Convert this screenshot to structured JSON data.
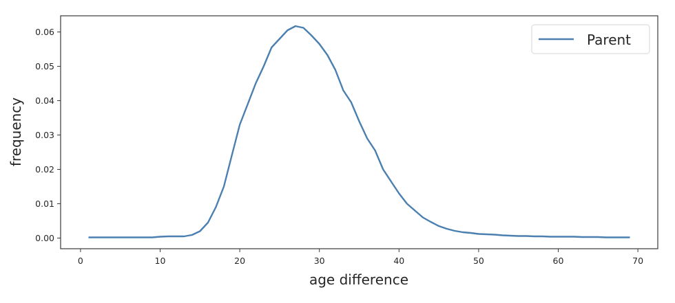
{
  "chart_data": {
    "type": "line",
    "title": "",
    "xlabel": "age difference",
    "ylabel": "frequency",
    "xlim": [
      -2.5,
      72.5
    ],
    "ylim": [
      -0.0031,
      0.0647
    ],
    "xticks": [
      0,
      10,
      20,
      30,
      40,
      50,
      60,
      70
    ],
    "xtick_labels": [
      "0",
      "10",
      "20",
      "30",
      "40",
      "50",
      "60",
      "70"
    ],
    "yticks": [
      0.0,
      0.01,
      0.02,
      0.03,
      0.04,
      0.05,
      0.06
    ],
    "ytick_labels": [
      "0.00",
      "0.01",
      "0.02",
      "0.03",
      "0.04",
      "0.05",
      "0.06"
    ],
    "grid": false,
    "legend": {
      "position": "upper right",
      "entries": [
        "Parent"
      ]
    },
    "series": [
      {
        "name": "Parent",
        "color": "#4a7fb0",
        "x": [
          1,
          2,
          3,
          4,
          5,
          6,
          7,
          8,
          9,
          10,
          11,
          12,
          13,
          14,
          15,
          16,
          17,
          18,
          19,
          20,
          21,
          22,
          23,
          24,
          25,
          26,
          27,
          28,
          29,
          30,
          31,
          32,
          33,
          34,
          35,
          36,
          37,
          38,
          39,
          40,
          41,
          42,
          43,
          44,
          45,
          46,
          47,
          48,
          49,
          50,
          51,
          52,
          53,
          54,
          55,
          56,
          57,
          58,
          59,
          60,
          61,
          62,
          63,
          64,
          65,
          66,
          67,
          68,
          69
        ],
        "values": [
          0.0002,
          0.0002,
          0.0002,
          0.0002,
          0.0002,
          0.0002,
          0.0002,
          0.0002,
          0.0002,
          0.0004,
          0.0005,
          0.0005,
          0.0005,
          0.0009,
          0.002,
          0.0045,
          0.009,
          0.015,
          0.024,
          0.033,
          0.039,
          0.045,
          0.05,
          0.0555,
          0.058,
          0.0605,
          0.0617,
          0.0612,
          0.059,
          0.0565,
          0.0533,
          0.049,
          0.043,
          0.0395,
          0.034,
          0.029,
          0.0255,
          0.02,
          0.0165,
          0.013,
          0.01,
          0.008,
          0.006,
          0.0047,
          0.0035,
          0.0027,
          0.0021,
          0.0017,
          0.0015,
          0.0012,
          0.0011,
          0.001,
          0.0008,
          0.0007,
          0.0006,
          0.0006,
          0.0005,
          0.0005,
          0.0004,
          0.0004,
          0.0004,
          0.0004,
          0.0003,
          0.0003,
          0.0003,
          0.0002,
          0.0002,
          0.0002,
          0.0002
        ]
      }
    ]
  }
}
